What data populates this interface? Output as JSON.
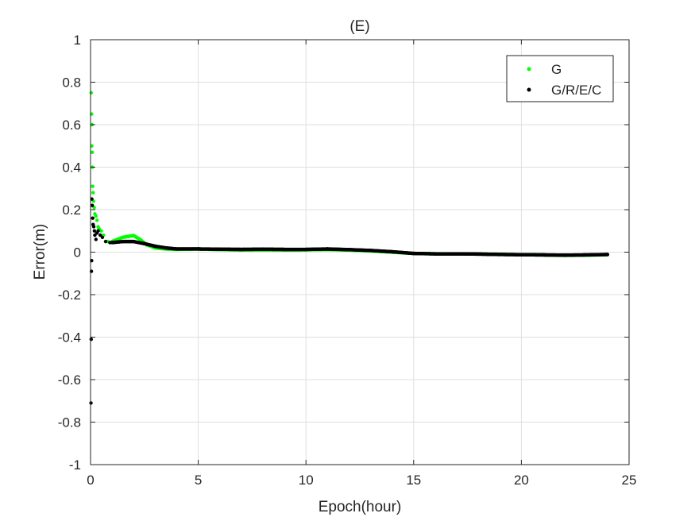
{
  "chart_data": {
    "type": "scatter",
    "title": "(E)",
    "xlabel": "Epoch(hour)",
    "ylabel": "Error(m)",
    "xlim": [
      0,
      25
    ],
    "ylim": [
      -1,
      1
    ],
    "xticks": [
      0,
      5,
      10,
      15,
      20,
      25
    ],
    "xtick_labels": [
      "0",
      "5",
      "10",
      "15",
      "20",
      "25"
    ],
    "yticks": [
      -1,
      -0.8,
      -0.6,
      -0.4,
      -0.2,
      0,
      0.2,
      0.4,
      0.6,
      0.8,
      1
    ],
    "ytick_labels": [
      "-1",
      "-0.8",
      "-0.6",
      "-0.4",
      "-0.2",
      "0",
      "0.2",
      "0.4",
      "0.6",
      "0.8",
      "1"
    ],
    "grid": true,
    "legend_position": "top-right",
    "series": [
      {
        "name": "G",
        "color": "#00ff00",
        "outliers": [
          [
            0.03,
            0.75
          ],
          [
            0.05,
            0.65
          ],
          [
            0.07,
            0.6
          ],
          [
            0.06,
            0.5
          ],
          [
            0.08,
            0.47
          ],
          [
            0.09,
            0.4
          ],
          [
            0.1,
            0.31
          ],
          [
            0.12,
            0.28
          ],
          [
            0.14,
            0.24
          ],
          [
            0.17,
            0.21
          ],
          [
            0.2,
            0.18
          ],
          [
            0.25,
            0.17
          ],
          [
            0.3,
            0.15
          ],
          [
            0.35,
            0.12
          ],
          [
            0.4,
            0.11
          ],
          [
            0.5,
            0.1
          ],
          [
            0.6,
            0.08
          ],
          [
            0.8,
            0.05
          ]
        ],
        "trend": [
          [
            1.0,
            0.05
          ],
          [
            1.5,
            0.07
          ],
          [
            2.0,
            0.078
          ],
          [
            2.3,
            0.06
          ],
          [
            2.6,
            0.035
          ],
          [
            3.0,
            0.02
          ],
          [
            3.5,
            0.015
          ],
          [
            4.0,
            0.013
          ],
          [
            5.0,
            0.015
          ],
          [
            6.0,
            0.012
          ],
          [
            7.0,
            0.01
          ],
          [
            8.0,
            0.01
          ],
          [
            9.0,
            0.01
          ],
          [
            10.0,
            0.011
          ],
          [
            11.0,
            0.012
          ],
          [
            12.0,
            0.01
          ],
          [
            13.0,
            0.006
          ],
          [
            14.0,
            0.0
          ],
          [
            15.0,
            -0.006
          ],
          [
            16.0,
            -0.008
          ],
          [
            17.0,
            -0.008
          ],
          [
            18.0,
            -0.009
          ],
          [
            19.0,
            -0.01
          ],
          [
            20.0,
            -0.012
          ],
          [
            21.0,
            -0.013
          ],
          [
            22.0,
            -0.015
          ],
          [
            23.0,
            -0.014
          ],
          [
            24.0,
            -0.012
          ]
        ]
      },
      {
        "name": "G/R/E/C",
        "color": "#000000",
        "outliers": [
          [
            0.02,
            -0.71
          ],
          [
            0.03,
            -0.41
          ],
          [
            0.04,
            -0.09
          ],
          [
            0.05,
            -0.04
          ],
          [
            0.06,
            0.25
          ],
          [
            0.08,
            0.22
          ],
          [
            0.1,
            0.16
          ],
          [
            0.12,
            0.13
          ],
          [
            0.15,
            0.12
          ],
          [
            0.18,
            0.1
          ],
          [
            0.2,
            0.08
          ],
          [
            0.25,
            0.06
          ],
          [
            0.3,
            0.09
          ],
          [
            0.35,
            0.1
          ],
          [
            0.45,
            0.08
          ],
          [
            0.55,
            0.07
          ],
          [
            0.7,
            0.05
          ],
          [
            0.9,
            0.045
          ]
        ],
        "trend": [
          [
            1.0,
            0.045
          ],
          [
            1.5,
            0.05
          ],
          [
            2.0,
            0.05
          ],
          [
            2.5,
            0.04
          ],
          [
            3.0,
            0.028
          ],
          [
            3.5,
            0.02
          ],
          [
            4.0,
            0.015
          ],
          [
            5.0,
            0.015
          ],
          [
            6.0,
            0.014
          ],
          [
            7.0,
            0.013
          ],
          [
            8.0,
            0.014
          ],
          [
            9.0,
            0.013
          ],
          [
            10.0,
            0.013
          ],
          [
            11.0,
            0.015
          ],
          [
            12.0,
            0.012
          ],
          [
            13.0,
            0.008
          ],
          [
            14.0,
            0.002
          ],
          [
            15.0,
            -0.006
          ],
          [
            16.0,
            -0.008
          ],
          [
            17.0,
            -0.008
          ],
          [
            18.0,
            -0.009
          ],
          [
            19.0,
            -0.011
          ],
          [
            20.0,
            -0.012
          ],
          [
            21.0,
            -0.013
          ],
          [
            22.0,
            -0.014
          ],
          [
            23.0,
            -0.013
          ],
          [
            24.0,
            -0.011
          ]
        ]
      }
    ]
  }
}
